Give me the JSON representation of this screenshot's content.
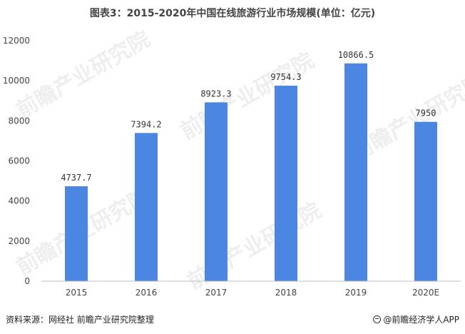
{
  "title": "图表3：2015-2020年中国在线旅游行业市场规模(单位：亿元)",
  "watermark_text": "前瞻产业研究院",
  "footer": {
    "source": "资料来源：网经社 前瞻产业研究院整理",
    "brand": "@前瞻经济学人APP"
  },
  "chart_data": {
    "type": "bar",
    "categories": [
      "2015",
      "2016",
      "2017",
      "2018",
      "2019",
      "2020E"
    ],
    "values": [
      4737.7,
      7394.2,
      8923.3,
      9754.3,
      10866.5,
      7950
    ],
    "value_labels": [
      "4737.7",
      "7394.2",
      "8923.3",
      "9754.3",
      "10866.5",
      "7950"
    ],
    "ylim": [
      0,
      12000
    ],
    "yticks": [
      0,
      2000,
      4000,
      6000,
      8000,
      10000,
      12000
    ],
    "grid": false,
    "bar_color": "#4a86e2",
    "xlabel": "",
    "ylabel": ""
  }
}
